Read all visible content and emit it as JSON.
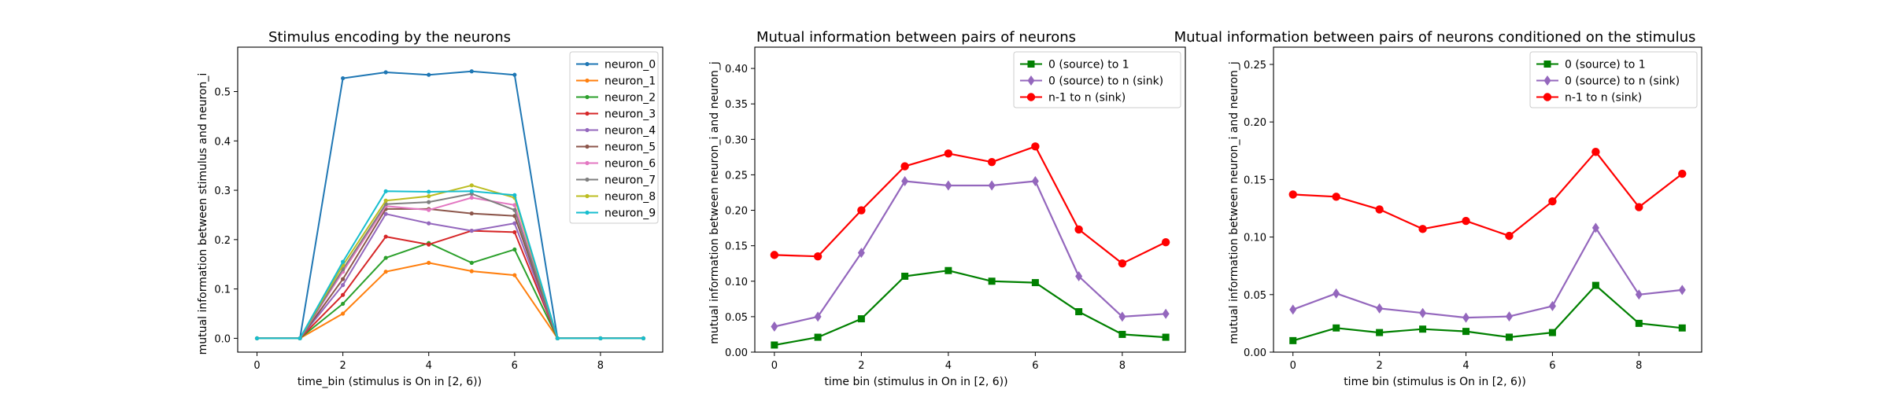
{
  "chart_data": [
    {
      "type": "line",
      "title": "Stimulus encoding by the neurons",
      "xlabel": "time_bin (stimulus is On in [2, 6))",
      "ylabel": "mutual information between stimulus and neuron_i",
      "xlim": [
        -0.45,
        9.45
      ],
      "ylim": [
        -0.028,
        0.59
      ],
      "xticks": [
        0,
        2,
        4,
        6,
        8
      ],
      "yticks": [
        0.0,
        0.1,
        0.2,
        0.3,
        0.4,
        0.5
      ],
      "ytick_decimals": 1,
      "grid": false,
      "legend_position": "top-right",
      "x": [
        0,
        1,
        2,
        3,
        4,
        5,
        6,
        7,
        8,
        9
      ],
      "series": [
        {
          "name": "neuron_0",
          "color": "#1f77b4",
          "marker": "dot",
          "values": [
            0,
            0,
            0.527,
            0.539,
            0.534,
            0.541,
            0.534,
            0,
            0,
            0
          ]
        },
        {
          "name": "neuron_1",
          "color": "#ff7f0e",
          "marker": "dot",
          "values": [
            0,
            0,
            0.05,
            0.135,
            0.153,
            0.136,
            0.128,
            0,
            0,
            0
          ]
        },
        {
          "name": "neuron_2",
          "color": "#2ca02c",
          "marker": "dot",
          "values": [
            0,
            0,
            0.07,
            0.163,
            0.193,
            0.153,
            0.18,
            0,
            0,
            0
          ]
        },
        {
          "name": "neuron_3",
          "color": "#d62728",
          "marker": "dot",
          "values": [
            0,
            0,
            0.088,
            0.206,
            0.19,
            0.218,
            0.215,
            0,
            0,
            0
          ]
        },
        {
          "name": "neuron_4",
          "color": "#9467bd",
          "marker": "dot",
          "values": [
            0,
            0,
            0.108,
            0.252,
            0.233,
            0.218,
            0.233,
            0,
            0,
            0
          ]
        },
        {
          "name": "neuron_5",
          "color": "#8c564b",
          "marker": "dot",
          "values": [
            0,
            0,
            0.12,
            0.262,
            0.262,
            0.253,
            0.248,
            0,
            0,
            0
          ]
        },
        {
          "name": "neuron_6",
          "color": "#e377c2",
          "marker": "dot",
          "values": [
            0,
            0,
            0.135,
            0.268,
            0.26,
            0.285,
            0.27,
            0,
            0,
            0
          ]
        },
        {
          "name": "neuron_7",
          "color": "#7f7f7f",
          "marker": "dot",
          "values": [
            0,
            0,
            0.14,
            0.272,
            0.276,
            0.293,
            0.26,
            0,
            0,
            0
          ]
        },
        {
          "name": "neuron_8",
          "color": "#bcbd22",
          "marker": "dot",
          "values": [
            0,
            0,
            0.148,
            0.279,
            0.288,
            0.31,
            0.285,
            0,
            0,
            0
          ]
        },
        {
          "name": "neuron_9",
          "color": "#17becf",
          "marker": "dot",
          "values": [
            0,
            0,
            0.155,
            0.298,
            0.297,
            0.298,
            0.29,
            0,
            0,
            0
          ]
        }
      ]
    },
    {
      "type": "line",
      "title": "Mutual information between pairs of neurons",
      "xlabel": "time bin (stimulus in On in [2, 6))",
      "ylabel": "mutual information between neuron_i and neuron_j",
      "xlim": [
        -0.45,
        9.45
      ],
      "ylim": [
        0.0,
        0.43
      ],
      "xticks": [
        0,
        2,
        4,
        6,
        8
      ],
      "yticks": [
        0.0,
        0.05,
        0.1,
        0.15,
        0.2,
        0.25,
        0.3,
        0.35,
        0.4
      ],
      "ytick_decimals": 2,
      "grid": false,
      "legend_position": "top-right",
      "x": [
        0,
        1,
        2,
        3,
        4,
        5,
        6,
        7,
        8,
        9
      ],
      "series": [
        {
          "name": "0 (source) to 1",
          "color": "#008000",
          "marker": "square",
          "values": [
            0.01,
            0.021,
            0.047,
            0.107,
            0.115,
            0.1,
            0.098,
            0.057,
            0.025,
            0.021
          ]
        },
        {
          "name": "0 (source) to n (sink)",
          "color": "#9467bd",
          "marker": "diamond",
          "values": [
            0.036,
            0.05,
            0.14,
            0.241,
            0.235,
            0.235,
            0.241,
            0.107,
            0.05,
            0.054
          ]
        },
        {
          "name": "n-1 to n (sink)",
          "color": "#ff0000",
          "marker": "circle",
          "values": [
            0.137,
            0.135,
            0.2,
            0.262,
            0.28,
            0.268,
            0.29,
            0.173,
            0.125,
            0.155
          ]
        }
      ]
    },
    {
      "type": "line",
      "title": "Mutual information between pairs of neurons conditioned on the stimulus",
      "xlabel": "time bin (stimulus is On in [2, 6))",
      "ylabel": "mutual information between neuron_i and neuron_j",
      "xlim": [
        -0.45,
        9.45
      ],
      "ylim": [
        0.0,
        0.265
      ],
      "xticks": [
        0,
        2,
        4,
        6,
        8
      ],
      "yticks": [
        0.0,
        0.05,
        0.1,
        0.15,
        0.2,
        0.25
      ],
      "ytick_decimals": 2,
      "grid": false,
      "legend_position": "top-right",
      "x": [
        0,
        1,
        2,
        3,
        4,
        5,
        6,
        7,
        8,
        9
      ],
      "series": [
        {
          "name": "0 (source) to 1",
          "color": "#008000",
          "marker": "square",
          "values": [
            0.01,
            0.021,
            0.017,
            0.02,
            0.018,
            0.013,
            0.017,
            0.058,
            0.025,
            0.021
          ]
        },
        {
          "name": "0 (source) to n (sink)",
          "color": "#9467bd",
          "marker": "diamond",
          "values": [
            0.037,
            0.051,
            0.038,
            0.034,
            0.03,
            0.031,
            0.04,
            0.108,
            0.05,
            0.054
          ]
        },
        {
          "name": "n-1 to n (sink)",
          "color": "#ff0000",
          "marker": "circle",
          "values": [
            0.137,
            0.135,
            0.124,
            0.107,
            0.114,
            0.101,
            0.131,
            0.174,
            0.126,
            0.155
          ]
        }
      ]
    }
  ]
}
